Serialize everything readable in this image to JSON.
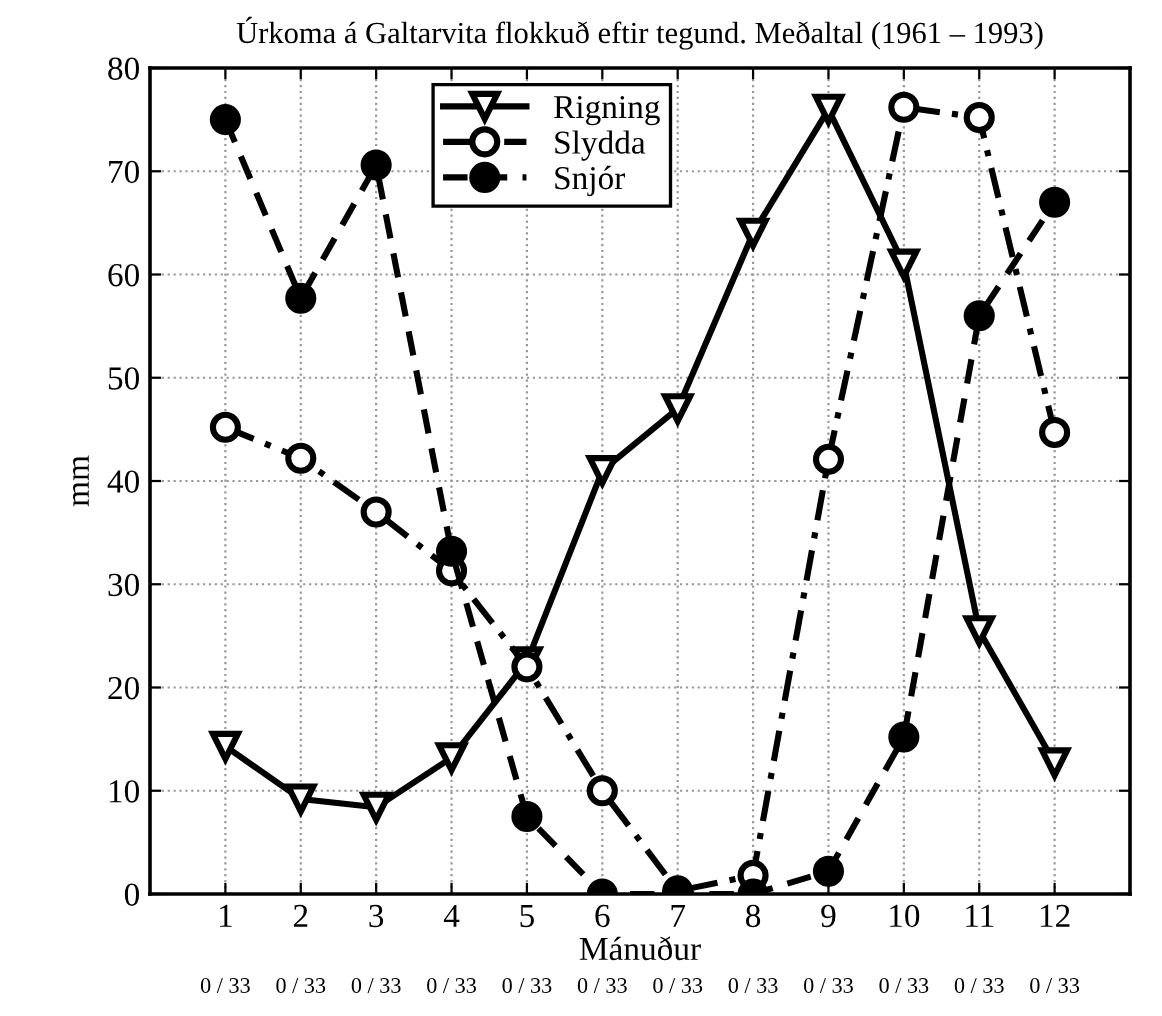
{
  "chart_data": {
    "type": "line",
    "title": "Úrkoma á Galtarvita flokkuð eftir tegund. Meðaltal (1961 – 1993)",
    "xlabel": "Mánuður",
    "ylabel": "mm",
    "x": [
      1,
      2,
      3,
      4,
      5,
      6,
      7,
      8,
      9,
      10,
      11,
      12
    ],
    "series": [
      {
        "name": "Rigning",
        "color": "#000000",
        "marker": "triangle",
        "line_style": "solid",
        "values": [
          14.3,
          9.2,
          8.4,
          13.2,
          22.5,
          41,
          47,
          64,
          76,
          61,
          25.5,
          12.7
        ]
      },
      {
        "name": "Slydda",
        "color": "#000000",
        "marker": "open circle",
        "line_style": "dashdot",
        "values": [
          45.2,
          42.2,
          37,
          31.3,
          22,
          10,
          0.3,
          1.8,
          42.1,
          76.2,
          75.2,
          44.7
        ]
      },
      {
        "name": "Snjór",
        "color": "#000000",
        "marker": "circle",
        "line_style": "dashed",
        "values": [
          75,
          57.7,
          70.6,
          33.2,
          7.5,
          0,
          0,
          0,
          2.2,
          15.2,
          56,
          67
        ]
      }
    ],
    "xlim": [
      0,
      13
    ],
    "xticks": [
      1,
      2,
      3,
      4,
      5,
      6,
      7,
      8,
      9,
      10,
      11,
      12
    ],
    "ylim": [
      0,
      80
    ],
    "yticks": [
      0,
      10,
      20,
      30,
      40,
      50,
      60,
      70,
      80
    ],
    "grid": true,
    "legend": "top",
    "annotations": [
      "0 / 33",
      "0 / 33",
      "0 / 33",
      "0 / 33",
      "0 / 33",
      "0 / 33",
      "0 / 33",
      "0 / 33",
      "0 / 33",
      "0 / 33",
      "0 / 33",
      "0 / 33"
    ]
  }
}
